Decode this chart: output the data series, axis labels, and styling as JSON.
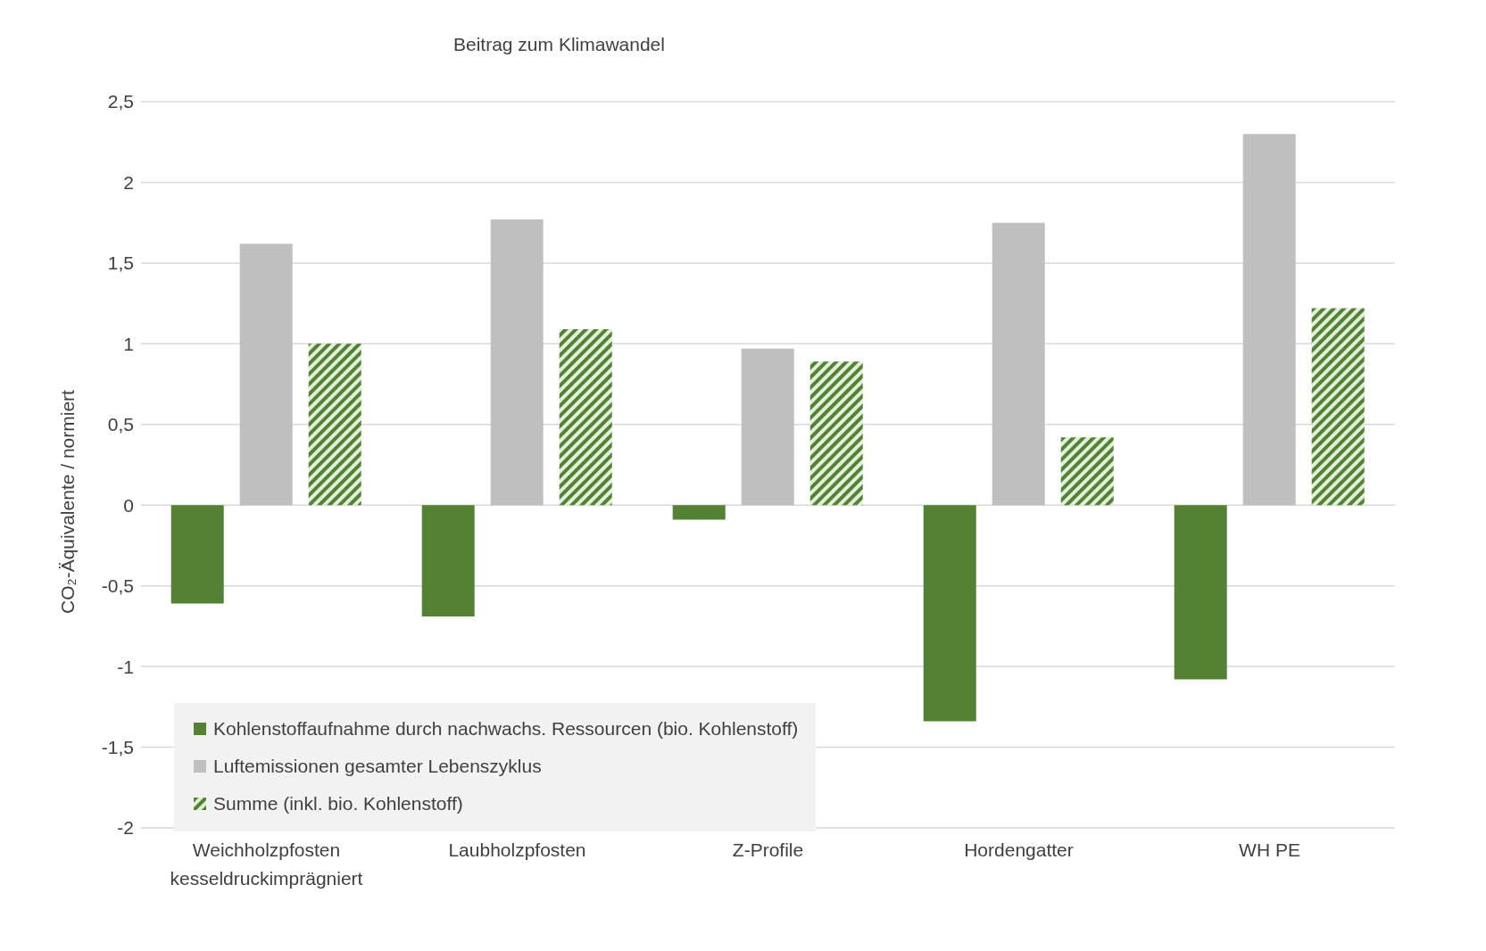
{
  "chart_data": {
    "type": "bar",
    "title": "Beitrag zum Klimawandel",
    "ylabel": "CO₂-Äquivalente / normiert",
    "categories": [
      "Weichholzpfosten kesseldruckimprägniert",
      "Laubholzpfosten",
      "Z-Profile",
      "Hordengatter",
      "WH PE"
    ],
    "series": [
      {
        "name": "Kohlenstoffaufnahme durch nachwachs. Ressourcen (bio. Kohlenstoff)",
        "color": "#548235",
        "values": [
          -0.61,
          -0.69,
          -0.09,
          -1.34,
          -1.08
        ]
      },
      {
        "name": "Luftemissionen gesamter Lebenszyklus",
        "color": "#bfbfbf",
        "values": [
          1.62,
          1.77,
          0.97,
          1.75,
          2.3
        ]
      },
      {
        "name": "Summe (inkl. bio. Kohlenstoff)",
        "color": "#548235",
        "values": [
          1.0,
          1.09,
          0.89,
          0.42,
          1.22
        ]
      }
    ],
    "ylim": [
      -2,
      2.5
    ],
    "yticks": [
      {
        "value": -2,
        "label": "-2"
      },
      {
        "value": -1.5,
        "label": "-1,5"
      },
      {
        "value": -1,
        "label": "-1"
      },
      {
        "value": -0.5,
        "label": "-0,5"
      },
      {
        "value": 0,
        "label": "0"
      },
      {
        "value": 0.5,
        "label": "0,5"
      },
      {
        "value": 1,
        "label": "1"
      },
      {
        "value": 1.5,
        "label": "1,5"
      },
      {
        "value": 2,
        "label": "2"
      },
      {
        "value": 2.5,
        "label": "2,5"
      }
    ],
    "grid": "y",
    "legend": "bottom left"
  }
}
